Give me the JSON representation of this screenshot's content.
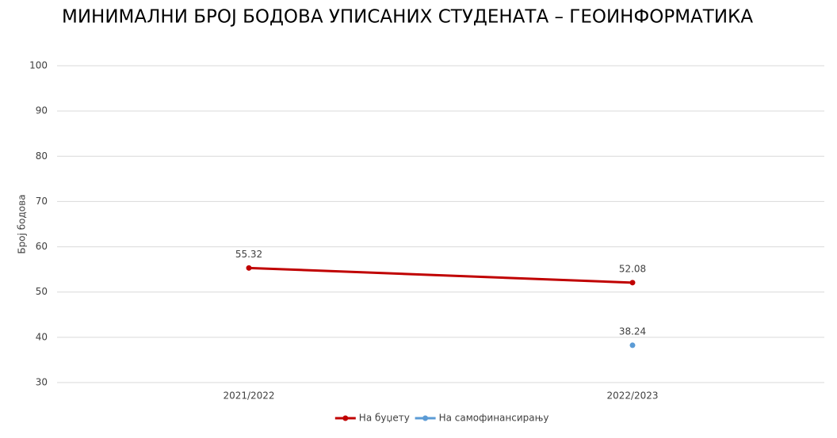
{
  "chart_data": {
    "type": "line",
    "title": "МИНИМАЛНИ БРОЈ БОДОВА УПИСАНИХ СТУДЕНАТА – ГЕОИНФОРМАТИКА",
    "y_label": "Број бодова",
    "categories": [
      "2021/2022",
      "2022/2023"
    ],
    "series": [
      {
        "name": "На буџету",
        "color": "#c00000",
        "values": [
          55.32,
          52.08
        ]
      },
      {
        "name": "На самофинансирању",
        "color": "#5b9bd5",
        "values": [
          null,
          38.24
        ]
      }
    ],
    "ylim": [
      30,
      100
    ],
    "yticks": [
      30,
      40,
      50,
      60,
      70,
      80,
      90,
      100
    ],
    "grid": true,
    "legend": "bottom"
  }
}
